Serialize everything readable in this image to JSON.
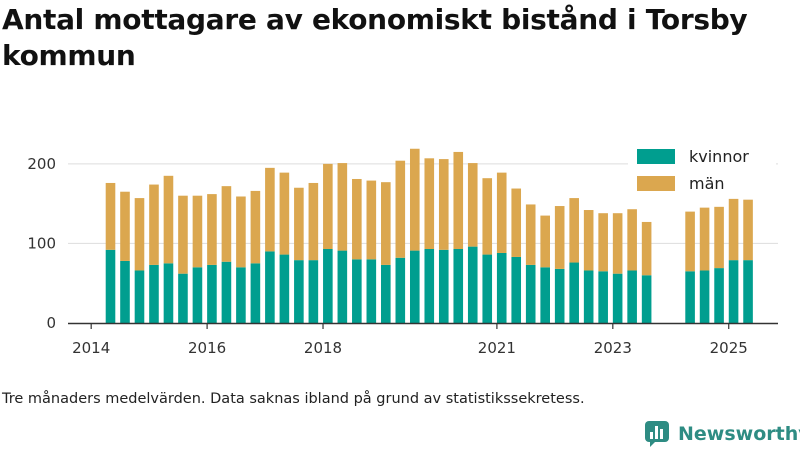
{
  "title": "Antal mottagare av ekonomiskt bistånd i Torsby kommun",
  "footnote": "Tre månaders medelvärden. Data saknas ibland på grund av statistikssekretess.",
  "brand": {
    "label": "Newsworthy",
    "logo_icon": "newsworthy-logo-icon",
    "color": "#2e8c83"
  },
  "chart_data": {
    "type": "bar",
    "stacked": true,
    "x_type": "date",
    "x": [
      "2014-05",
      "2014-08",
      "2014-11",
      "2015-02",
      "2015-05",
      "2015-08",
      "2015-11",
      "2016-02",
      "2016-05",
      "2016-08",
      "2016-11",
      "2017-02",
      "2017-05",
      "2017-08",
      "2017-11",
      "2018-02",
      "2018-05",
      "2018-08",
      "2018-11",
      "2019-02",
      "2019-05",
      "2019-08",
      "2019-11",
      "2020-02",
      "2020-05",
      "2020-08",
      "2020-11",
      "2021-02",
      "2021-05",
      "2021-08",
      "2021-11",
      "2022-02",
      "2022-05",
      "2022-08",
      "2022-11",
      "2023-02",
      "2023-05",
      "2023-08",
      "2023-11",
      "2024-02",
      "2024-05",
      "2024-08",
      "2024-11",
      "2025-02",
      "2025-05"
    ],
    "series": [
      {
        "name": "kvinnor",
        "color": "#009e8f",
        "values": [
          92,
          78,
          66,
          73,
          75,
          62,
          70,
          73,
          77,
          70,
          75,
          90,
          86,
          79,
          79,
          93,
          91,
          80,
          80,
          73,
          82,
          91,
          93,
          92,
          93,
          96,
          86,
          88,
          83,
          73,
          70,
          68,
          76,
          66,
          65,
          62,
          66,
          60,
          null,
          null,
          65,
          66,
          69,
          79,
          79
        ]
      },
      {
        "name": "män",
        "color": "#dba74f",
        "values": [
          84,
          87,
          91,
          101,
          110,
          98,
          90,
          89,
          95,
          89,
          91,
          105,
          103,
          91,
          97,
          107,
          110,
          101,
          99,
          104,
          122,
          128,
          114,
          114,
          122,
          105,
          96,
          101,
          86,
          76,
          65,
          79,
          81,
          76,
          73,
          76,
          77,
          67,
          null,
          null,
          75,
          79,
          77,
          77,
          76
        ]
      }
    ],
    "xticks": [
      "2014",
      "2016",
      "2018",
      "2021",
      "2023",
      "2025"
    ],
    "yticks": [
      0,
      100,
      200
    ],
    "ylim": [
      0,
      230
    ],
    "grid": "horizontal",
    "legend_position": "top-right"
  }
}
